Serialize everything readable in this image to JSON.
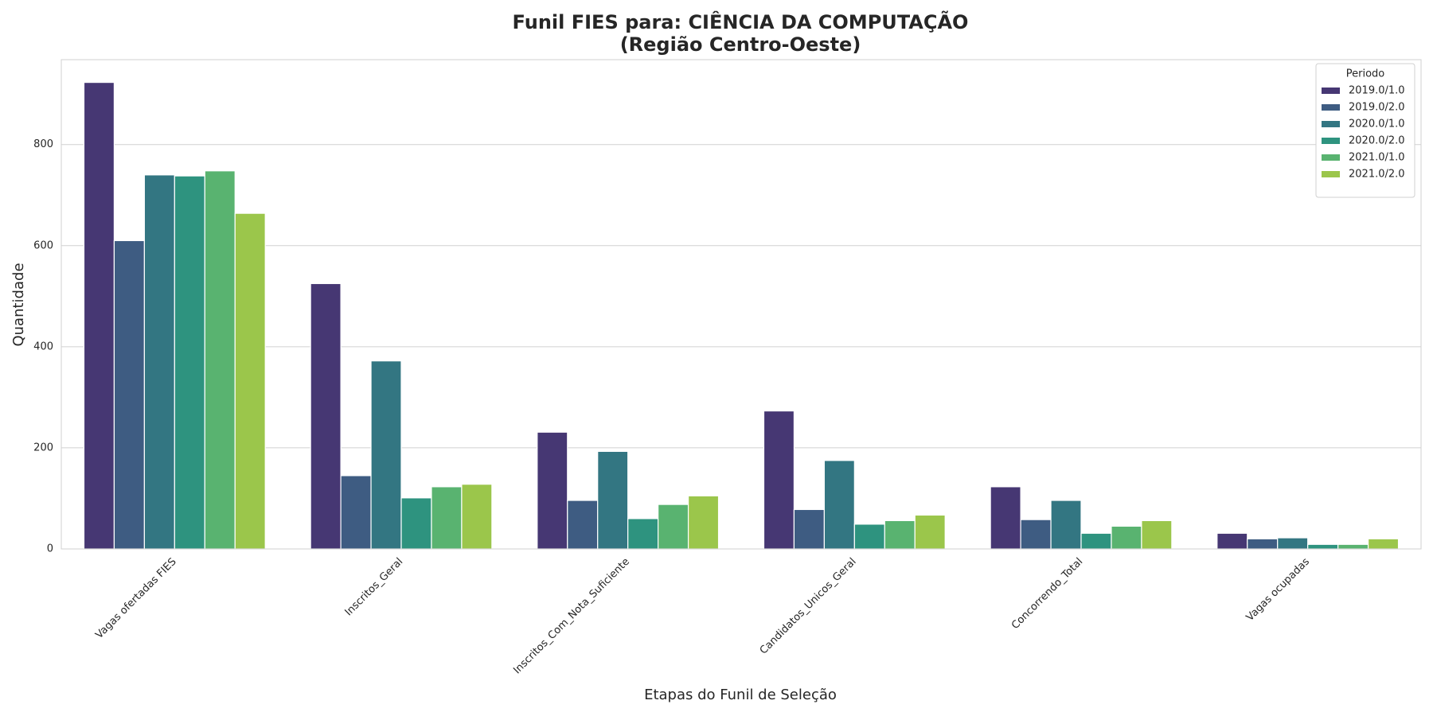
{
  "chart_data": {
    "type": "bar",
    "title": "Funil FIES para: CIÊNCIA DA COMPUTAÇÃO",
    "subtitle": "(Região Centro-Oeste)",
    "x_label": "Etapas do Funil de Seleção",
    "y_label": "Quantidade",
    "legend_title": "Periodo",
    "legend_position": "upper-right",
    "grid": true,
    "categories": [
      "Vagas ofertadas FIES",
      "Inscritos_Geral",
      "Inscritos_Com_Nota_Suficiente",
      "Candidatos_Unicos_Geral",
      "Concorrendo_Total",
      "Vagas ocupadas"
    ],
    "series": [
      {
        "name": "2019.0/1.0",
        "color": "#463773",
        "values": [
          923,
          525,
          231,
          273,
          123,
          31
        ]
      },
      {
        "name": "2019.0/2.0",
        "color": "#3e5c82",
        "values": [
          610,
          145,
          96,
          78,
          58,
          20
        ]
      },
      {
        "name": "2020.0/1.0",
        "color": "#337682",
        "values": [
          740,
          372,
          193,
          175,
          96,
          22
        ]
      },
      {
        "name": "2020.0/2.0",
        "color": "#2e937f",
        "values": [
          738,
          101,
          60,
          49,
          31,
          9
        ]
      },
      {
        "name": "2021.0/1.0",
        "color": "#59b370",
        "values": [
          748,
          123,
          88,
          56,
          45,
          9
        ]
      },
      {
        "name": "2021.0/2.0",
        "color": "#9bc64b",
        "values": [
          664,
          128,
          105,
          67,
          56,
          20
        ]
      }
    ],
    "ylim": [
      0,
      968
    ],
    "yticks": [
      0,
      200,
      400,
      600,
      800
    ]
  }
}
